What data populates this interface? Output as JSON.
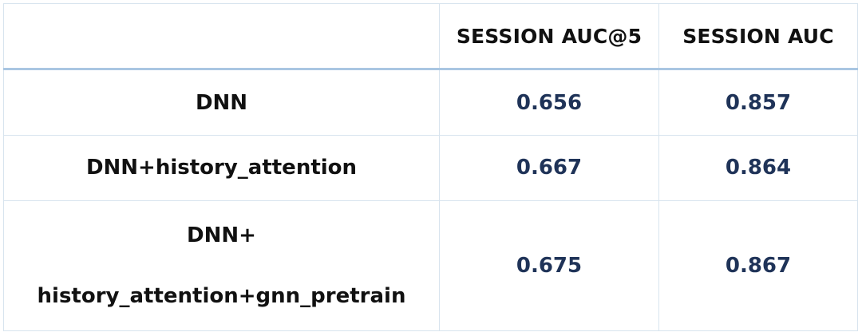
{
  "chart_data": {
    "type": "table",
    "columns": [
      "",
      "SESSION AUC@5",
      "SESSION AUC"
    ],
    "rows": [
      {
        "label": [
          "DNN"
        ],
        "values": [
          "0.656",
          "0.857"
        ]
      },
      {
        "label": [
          "DNN+history_attention"
        ],
        "values": [
          "0.667",
          "0.864"
        ]
      },
      {
        "label": [
          "DNN+",
          "history_attention+gnn_pretrain"
        ],
        "values": [
          "0.675",
          "0.867"
        ]
      }
    ]
  },
  "colors": {
    "header_text": "#111111",
    "value_text": "#1f3358",
    "grid": "#d8e4ee",
    "header_rule": "#a9c6e2"
  }
}
